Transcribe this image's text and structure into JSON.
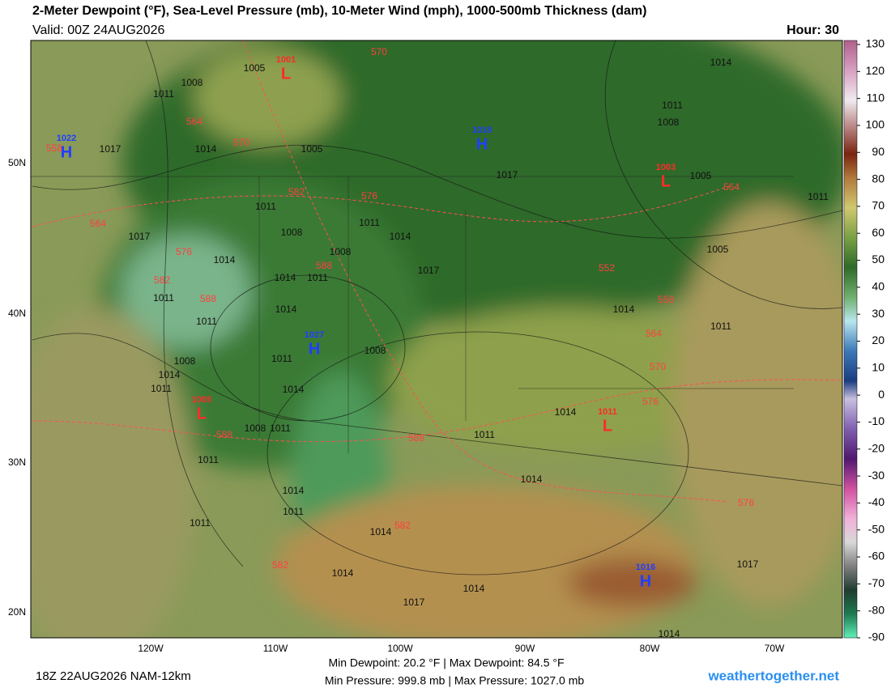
{
  "header": {
    "title": "2-Meter Dewpoint (°F), Sea-Level Pressure (mb), 10-Meter Wind (mph), 1000-500mb Thickness (dam)",
    "valid": "Valid: 00Z 24AUG2026",
    "hour": "Hour: 30"
  },
  "colorbar": {
    "ticks": [
      130,
      120,
      110,
      100,
      90,
      80,
      70,
      60,
      50,
      40,
      30,
      20,
      10,
      0,
      -10,
      -20,
      -30,
      -40,
      -50,
      -60,
      -70,
      -80,
      -90
    ]
  },
  "axes": {
    "lat_labels": [
      "50N",
      "40N",
      "30N",
      "20N"
    ],
    "lon_labels": [
      "120W",
      "110W",
      "100W",
      "90W",
      "80W",
      "70W"
    ]
  },
  "pressure_centers": [
    {
      "symbol": "H",
      "value": 1022,
      "color": "#1f3fff"
    },
    {
      "symbol": "L",
      "value": 1001,
      "color": "#ff2a2a"
    },
    {
      "symbol": "H",
      "value": 1018,
      "color": "#1f3fff"
    },
    {
      "symbol": "L",
      "value": 1003,
      "color": "#ff2a2a"
    },
    {
      "symbol": "H",
      "value": 1027,
      "color": "#1f3fff"
    },
    {
      "symbol": "L",
      "value": 1005,
      "color": "#ff2a2a"
    },
    {
      "symbol": "L",
      "value": 1011,
      "color": "#ff2a2a"
    },
    {
      "symbol": "H",
      "value": 1016,
      "color": "#1f3fff"
    }
  ],
  "isobar_labels": [
    1005,
    1008,
    1011,
    1014,
    1011,
    1008,
    1017,
    1014,
    1005,
    1017,
    1005,
    1011,
    1011,
    1011,
    1014,
    1008,
    1017,
    1014,
    1008,
    1017,
    1014,
    1011,
    1005,
    1011,
    1014,
    1014,
    1011,
    1011,
    1008,
    1014,
    1011,
    1011,
    1008,
    1014,
    1014,
    1008,
    1011,
    1011,
    1011,
    1014,
    1014,
    1011,
    1011,
    1014,
    1014,
    1017,
    1014,
    1017,
    1014
  ],
  "thickness_labels": [
    570,
    564,
    570,
    558,
    576,
    582,
    564,
    564,
    576,
    582,
    588,
    588,
    552,
    558,
    564,
    570,
    576,
    588,
    588,
    582,
    582,
    576
  ],
  "footer": {
    "run": "18Z 22AUG2026 NAM-12km",
    "dewpoint": "Min Dewpoint: 20.2 °F | Max Dewpoint: 84.5 °F",
    "pressure": "Min Pressure: 999.8 mb | Max Pressure: 1027.0 mb",
    "site": "weathertogether.net"
  }
}
